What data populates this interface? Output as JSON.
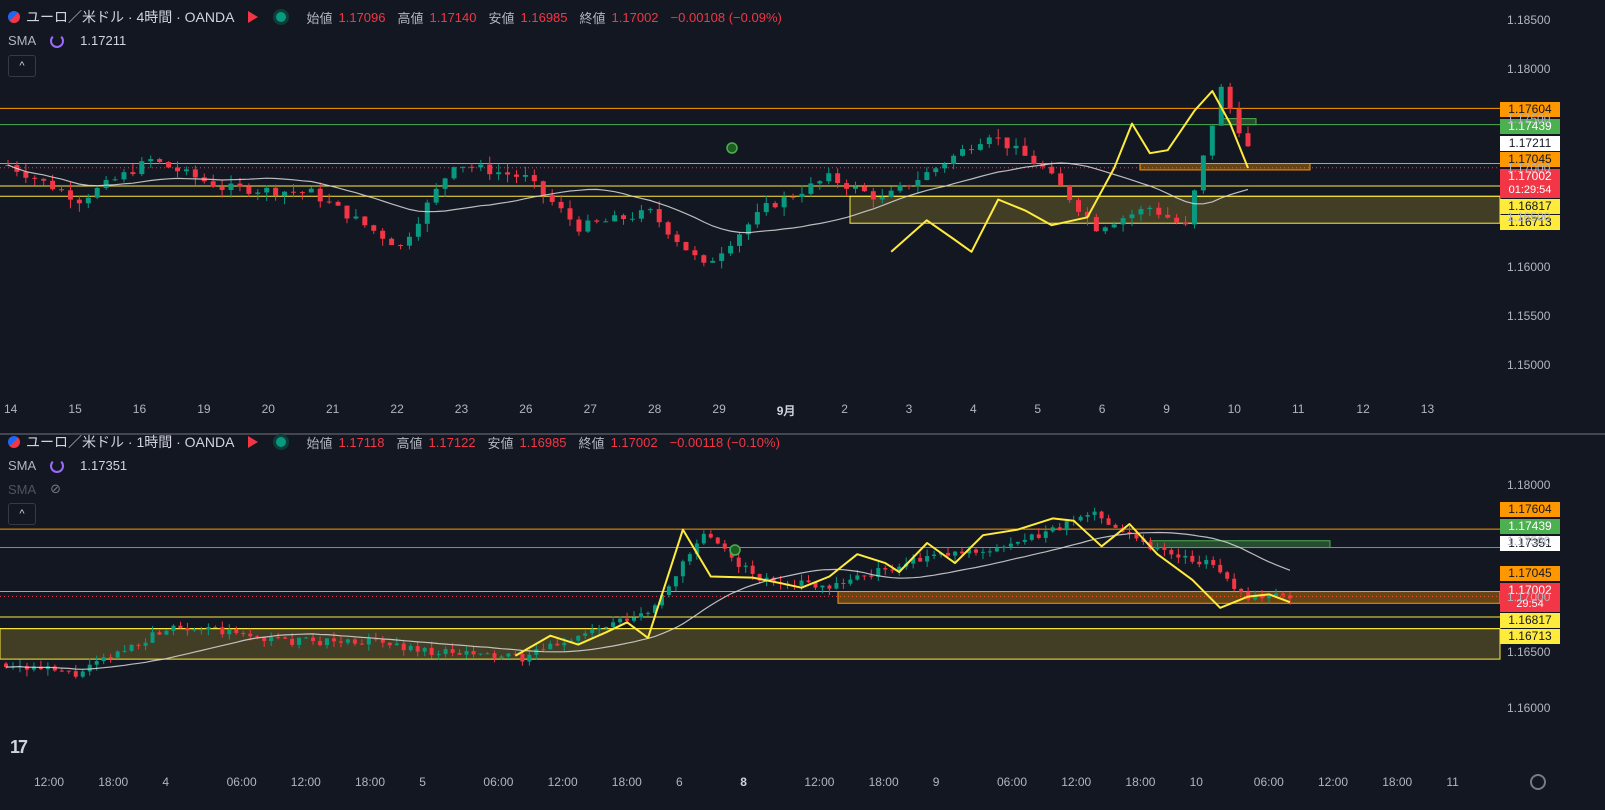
{
  "top": {
    "title": "ユーロ／米ドル · 4時間 · OANDA",
    "ohlc": [
      {
        "label": "始値",
        "value": "1.17096"
      },
      {
        "label": "高値",
        "value": "1.17140"
      },
      {
        "label": "安値",
        "value": "1.16985"
      },
      {
        "label": "終値",
        "value": "1.17002"
      },
      {
        "label": "",
        "value": "−0.00108 (−0.09%)"
      }
    ],
    "sma_label": "SMA",
    "sma_value": "1.17211",
    "collapse_icon": "^"
  },
  "bottom": {
    "title": "ユーロ／米ドル · 1時間 · OANDA",
    "ohlc": [
      {
        "label": "始値",
        "value": "1.17118"
      },
      {
        "label": "高値",
        "value": "1.17122"
      },
      {
        "label": "安値",
        "value": "1.16985"
      },
      {
        "label": "終値",
        "value": "1.17002"
      },
      {
        "label": "",
        "value": "−0.00118 (−0.10%)"
      }
    ],
    "sma_label": "SMA",
    "sma_value": "1.17351",
    "sma2_label": "SMA",
    "collapse_icon": "^"
  },
  "colors": {
    "up": "#089981",
    "down": "#f23645",
    "resistance_orange": "#ff9800",
    "green_line": "#4caf50",
    "yellow": "#ffeb3b",
    "sma": "#d9d9d9",
    "zone_fill": "#4a4526"
  },
  "icons": {
    "logo": "tradingview-logo",
    "settings": "gear-icon"
  },
  "tv_logo": "17",
  "chart_data": [
    {
      "type": "candlestick",
      "title": "ユーロ／米ドル · 4時間 · OANDA",
      "ylim": [
        1.1475,
        1.1855
      ],
      "y_ticks": [
        "1.18500",
        "1.18000",
        "1.17500",
        "1.17000",
        "1.16500",
        "1.16000",
        "1.15500",
        "1.15000"
      ],
      "x_ticks": [
        "14",
        "15",
        "16",
        "19",
        "20",
        "21",
        "22",
        "23",
        "26",
        "27",
        "28",
        "29",
        "9月",
        "2",
        "3",
        "4",
        "5",
        "6",
        "9",
        "10",
        "11",
        "12",
        "13"
      ],
      "price_tags": [
        {
          "value": "1.17604",
          "bg": "#ff9800",
          "fg": "#131722"
        },
        {
          "value": "1.17439",
          "bg": "#4caf50",
          "fg": "#ffffff"
        },
        {
          "value": "1.17211",
          "bg": "#ffffff",
          "fg": "#131722"
        },
        {
          "value": "1.17045",
          "bg": "#ff9800",
          "fg": "#131722"
        },
        {
          "value": "1.17002",
          "bg": "#f23645",
          "fg": "#ffffff",
          "timer": "01:29:54"
        },
        {
          "value": "1.16817",
          "bg": "#ffeb3b",
          "fg": "#131722"
        },
        {
          "value": "1.16713",
          "bg": "#ffeb3b",
          "fg": "#131722"
        }
      ],
      "levels": [
        1.17604,
        1.17439,
        1.17045,
        1.16817,
        1.16713
      ],
      "zone": [
        1.1644,
        1.16713
      ],
      "sma_last": 1.17211,
      "last_price": 1.17002
    },
    {
      "type": "candlestick",
      "title": "ユーロ／米ドル · 1時間 · OANDA",
      "ylim": [
        1.1585,
        1.1825
      ],
      "y_ticks": [
        "1.18000",
        "1.17500",
        "1.17000",
        "1.16500",
        "1.16000"
      ],
      "x_ticks": [
        "12:00",
        "18:00",
        "4",
        "06:00",
        "12:00",
        "18:00",
        "5",
        "06:00",
        "12:00",
        "18:00",
        "6",
        "8",
        "12:00",
        "18:00",
        "9",
        "06:00",
        "12:00",
        "18:00",
        "10",
        "06:00",
        "12:00",
        "18:00",
        "11"
      ],
      "price_tags": [
        {
          "value": "1.17604",
          "bg": "#ff9800",
          "fg": "#131722"
        },
        {
          "value": "1.17439",
          "bg": "#4caf50",
          "fg": "#ffffff"
        },
        {
          "value": "1.17351",
          "bg": "#ffffff",
          "fg": "#131722"
        },
        {
          "value": "1.17045",
          "bg": "#ff9800",
          "fg": "#131722"
        },
        {
          "value": "1.17002",
          "bg": "#f23645",
          "fg": "#ffffff",
          "timer": "29:54"
        },
        {
          "value": "1.16817",
          "bg": "#ffeb3b",
          "fg": "#131722"
        },
        {
          "value": "1.16713",
          "bg": "#ffeb3b",
          "fg": "#131722"
        }
      ],
      "levels": [
        1.17604,
        1.17439,
        1.17045,
        1.16817,
        1.16713
      ],
      "zone": [
        1.1644,
        1.16713
      ],
      "sma_last": 1.17351,
      "last_price": 1.17002
    }
  ]
}
